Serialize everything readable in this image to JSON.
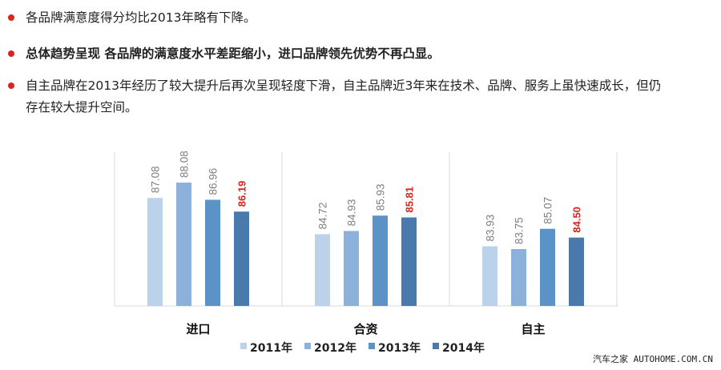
{
  "bullets": [
    {
      "text": "各品牌满意度得分均比2013年略有下降。",
      "bold": false
    },
    {
      "text": "总体趋势呈现 各品牌的满意度水平差距缩小，进口品牌领先优势不再凸显。",
      "bold": true
    },
    {
      "text_line1": "自主品牌在2013年经历了较大提升后再次呈现轻度下滑，自主品牌近3年来在技术、品牌、服务上虽快速成长，但仍",
      "text_line2": "存在较大提升空间。",
      "bold": false
    }
  ],
  "colors": {
    "bullet": "#d9261c",
    "highlight_label": "#d9261c",
    "label": "#7f7f7f",
    "series": [
      "#bcd2ea",
      "#8cb2dc",
      "#5b93c8",
      "#4a7aab"
    ]
  },
  "chart_data": {
    "type": "bar",
    "categories": [
      "进口",
      "合资",
      "自主"
    ],
    "series": [
      {
        "name": "2011年",
        "values": [
          87.08,
          84.72,
          83.93
        ]
      },
      {
        "name": "2012年",
        "values": [
          88.08,
          84.93,
          83.75
        ]
      },
      {
        "name": "2013年",
        "values": [
          86.96,
          85.93,
          85.07
        ]
      },
      {
        "name": "2014年",
        "values": [
          86.19,
          85.81,
          84.5
        ]
      }
    ],
    "labels": [
      [
        "87.08",
        "88.08",
        "86.96",
        "86.19"
      ],
      [
        "84.72",
        "84.93",
        "85.93",
        "85.81"
      ],
      [
        "83.93",
        "83.75",
        "85.07",
        "84.50"
      ]
    ],
    "highlight_series": 3,
    "ylim": [
      80,
      90
    ],
    "legend_position": "bottom",
    "grid": false
  },
  "watermark": "汽车之家 AUTOHOME.COM.CN"
}
